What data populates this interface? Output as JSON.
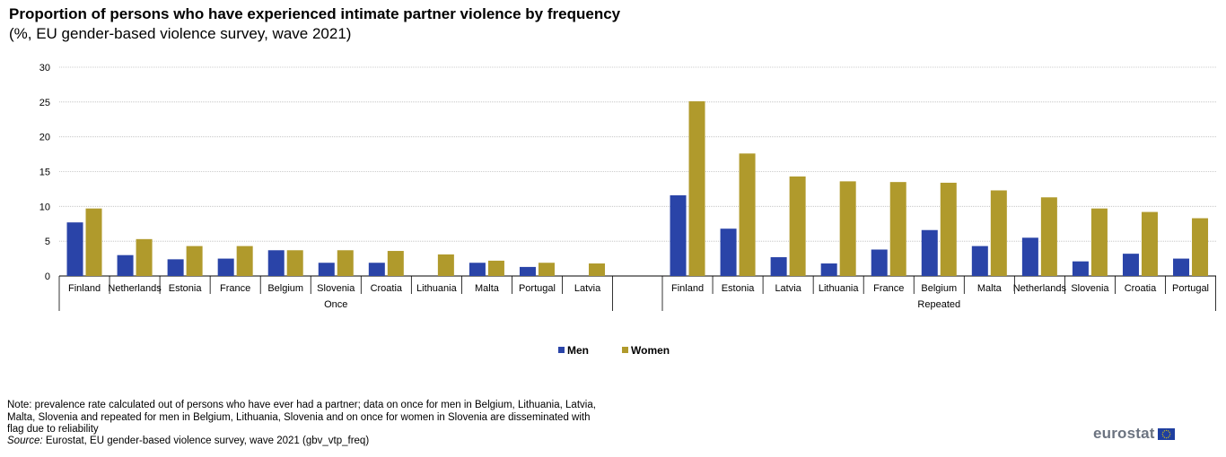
{
  "chart_data": {
    "type": "bar",
    "title": "Proportion of persons who have experienced intimate partner violence by frequency",
    "subtitle": "(%, EU gender-based violence survey, wave 2021)",
    "ylim": [
      0,
      30
    ],
    "yticks": [
      0,
      5,
      10,
      15,
      20,
      25,
      30
    ],
    "grid": true,
    "legend_position": "bottom-center",
    "series_names": [
      "Men",
      "Women"
    ],
    "colors": {
      "Men": "#2a44a8",
      "Women": "#b09a2c"
    },
    "groups": [
      {
        "name": "Once",
        "categories": [
          "Finland",
          "Netherlands",
          "Estonia",
          "France",
          "Belgium",
          "Slovenia",
          "Croatia",
          "Lithuania",
          "Malta",
          "Portugal",
          "Latvia"
        ],
        "series": [
          {
            "name": "Men",
            "values": [
              7.7,
              3.0,
              2.4,
              2.5,
              3.7,
              1.9,
              1.9,
              null,
              1.9,
              1.3,
              null
            ]
          },
          {
            "name": "Women",
            "values": [
              9.7,
              5.3,
              4.3,
              4.3,
              3.7,
              3.7,
              3.6,
              3.1,
              2.2,
              1.9,
              1.8
            ]
          }
        ]
      },
      {
        "name": "Repeated",
        "categories": [
          "Finland",
          "Estonia",
          "Latvia",
          "Lithuania",
          "France",
          "Belgium",
          "Malta",
          "Netherlands",
          "Slovenia",
          "Croatia",
          "Portugal"
        ],
        "series": [
          {
            "name": "Men",
            "values": [
              11.6,
              6.8,
              2.7,
              1.8,
              3.8,
              6.6,
              4.3,
              5.5,
              2.1,
              3.2,
              2.5
            ]
          },
          {
            "name": "Women",
            "values": [
              25.1,
              17.6,
              14.3,
              13.6,
              13.5,
              13.4,
              12.3,
              11.3,
              9.7,
              9.2,
              8.3
            ]
          }
        ]
      }
    ]
  },
  "footer": {
    "note": "Note: prevalence rate calculated out of persons who have ever had a partner; data on once for men in Belgium, Lithuania, Latvia, Malta, Slovenia and repeated for men in Belgium, Lithuania, Slovenia and on once for women in Slovenia are disseminated with flag due to reliability",
    "source_label": "Source:",
    "source_text": " Eurostat, EU gender-based violence survey, wave 2021 (gbv_vtp_freq)"
  },
  "logo": {
    "text": "eurostat",
    "icon": "eu-flag-icon"
  }
}
